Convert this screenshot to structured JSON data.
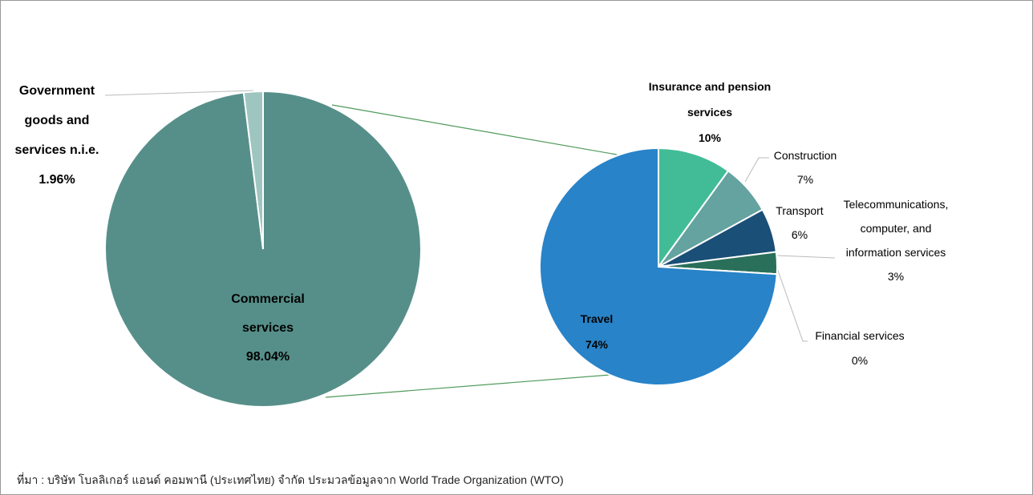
{
  "chart_data": [
    {
      "type": "pie",
      "categories": [
        "Commercial services",
        "Government goods and services n.i.e."
      ],
      "values": [
        98.04,
        1.96
      ],
      "value_labels": [
        "98.04%",
        "1.96%"
      ],
      "colors": [
        "#568f89",
        "#9fc5c1"
      ]
    },
    {
      "type": "pie",
      "categories": [
        "Insurance and pension services",
        "Construction",
        "Transport",
        "Telecommunications, computer, and information services",
        "Financial services",
        "Travel"
      ],
      "values": [
        10,
        7,
        6,
        3,
        0,
        74
      ],
      "value_labels": [
        "10%",
        "7%",
        "6%",
        "3%",
        "0%",
        "74%"
      ],
      "colors": [
        "#42bc97",
        "#64a39f",
        "#1a4f77",
        "#2a6f5a",
        "#3a8a6a",
        "#2883c8"
      ]
    }
  ],
  "source": "ที่มา : บริษัท โบลลิเกอร์ แอนด์ คอมพานี (ประเทศไทย) จำกัด ประมวลข้อมูลจาก World Trade Organization (WTO)"
}
